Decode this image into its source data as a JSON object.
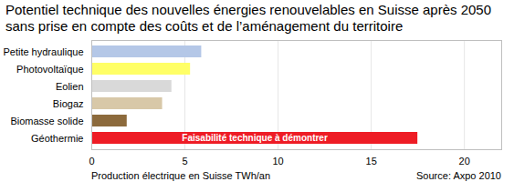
{
  "chart_data": {
    "type": "bar",
    "orientation": "horizontal",
    "title": "Potentiel technique des nouvelles énergies renouvelables en Suisse après 2050",
    "subtitle": "sans prise en compte des coûts et de l’aménagement du territoire",
    "xlabel": "Production électrique en Suisse TWh/an",
    "source": "Source: Axpo 2010",
    "categories": [
      "Petite hydraulique",
      "Photovoltaïque",
      "Eolien",
      "Biogaz",
      "Biomasse solide",
      "Géothermie"
    ],
    "values": [
      5.9,
      5.3,
      4.3,
      3.8,
      1.9,
      17.5
    ],
    "colors": [
      "#b4c7e7",
      "#ffff66",
      "#d9d9d9",
      "#d8c8a8",
      "#8c6a3c",
      "#ee1c25"
    ],
    "annotations": [
      {
        "category": "Géothermie",
        "text": "Faisabilité technique à démontrer"
      }
    ],
    "xlim": [
      0,
      22
    ],
    "xticks": [
      0,
      5,
      10,
      15,
      20
    ],
    "grid": true
  }
}
